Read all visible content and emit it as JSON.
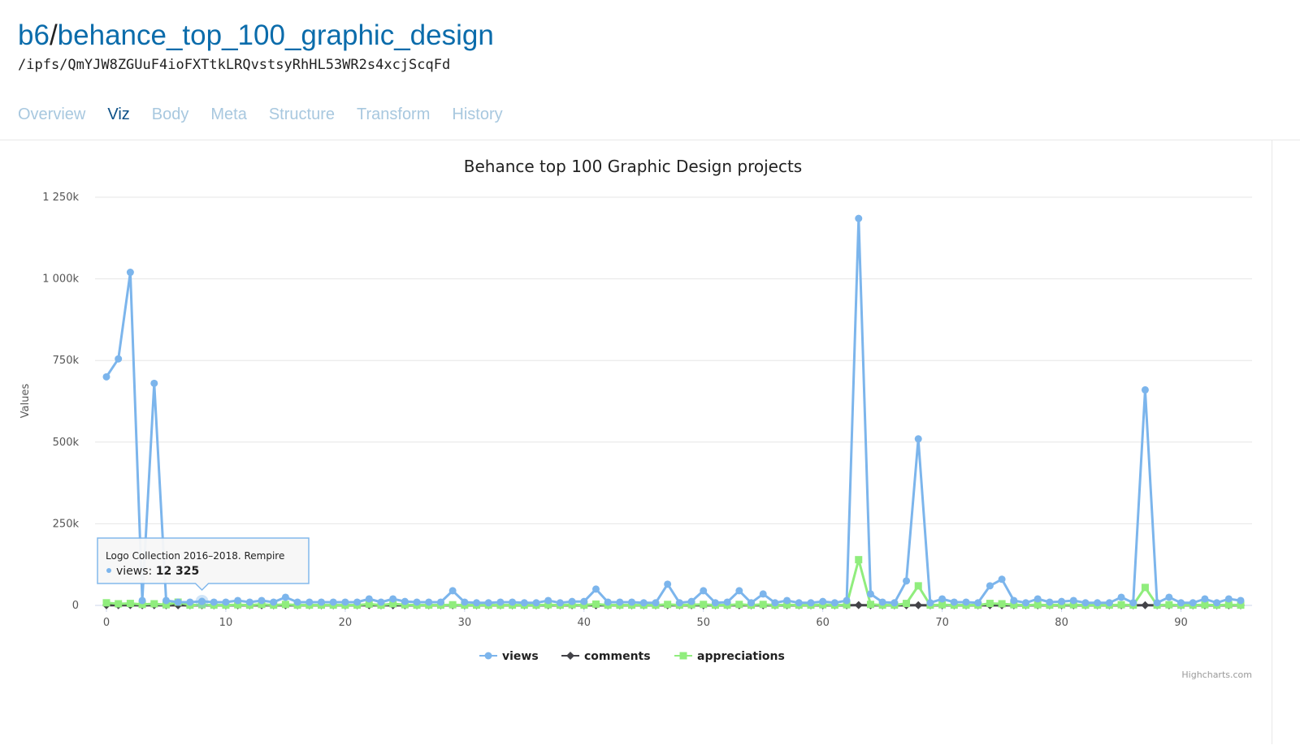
{
  "header": {
    "owner": "b6",
    "separator": "/",
    "dataset": "behance_top_100_graphic_design",
    "path": "/ipfs/QmYJW8ZGUuF4ioFXTtkLRQvstsyRhHL53WR2s4xcjScqFd"
  },
  "tabs": [
    {
      "label": "Overview",
      "active": false
    },
    {
      "label": "Viz",
      "active": true
    },
    {
      "label": "Body",
      "active": false
    },
    {
      "label": "Meta",
      "active": false
    },
    {
      "label": "Structure",
      "active": false
    },
    {
      "label": "Transform",
      "active": false
    },
    {
      "label": "History",
      "active": false
    }
  ],
  "colors": {
    "views": "#7cb5ec",
    "comments": "#434348",
    "appreciations": "#90ed7d",
    "link": "#0b6cab",
    "tab_inactive": "#a8c8df",
    "tab_active": "#0b4f86"
  },
  "chart_data": {
    "type": "line",
    "title": "Behance top 100 Graphic Design projects",
    "xlabel": "",
    "ylabel": "Values",
    "xlim": [
      0,
      95
    ],
    "ylim": [
      0,
      1250000
    ],
    "x_ticks": [
      "0",
      "10",
      "20",
      "30",
      "40",
      "50",
      "60",
      "70",
      "80",
      "90"
    ],
    "y_ticks": [
      "0",
      "250k",
      "500k",
      "750k",
      "1 000k",
      "1 250k"
    ],
    "grid": true,
    "legend": "bottom-center",
    "credit": "Highcharts.com",
    "tooltip": {
      "title": "Logo Collection 2016–2018. Rempire",
      "series": "views",
      "value": "12 325",
      "x": 8
    },
    "series": [
      {
        "name": "views",
        "marker": "circle",
        "values": [
          700000,
          755000,
          1020000,
          15000,
          680000,
          15000,
          10000,
          10000,
          12325,
          10000,
          10000,
          15000,
          10000,
          15000,
          10000,
          25000,
          10000,
          10000,
          10000,
          10000,
          10000,
          10000,
          20000,
          10000,
          20000,
          12000,
          10000,
          10000,
          10000,
          45000,
          10000,
          8000,
          8000,
          10000,
          10000,
          8000,
          8000,
          15000,
          8000,
          12000,
          12000,
          50000,
          10000,
          10000,
          10000,
          8000,
          8000,
          65000,
          8000,
          12000,
          45000,
          8000,
          10000,
          45000,
          8000,
          35000,
          8000,
          15000,
          8000,
          8000,
          12000,
          8000,
          15000,
          1185000,
          35000,
          10000,
          8000,
          75000,
          510000,
          8000,
          20000,
          10000,
          10000,
          8000,
          60000,
          80000,
          15000,
          8000,
          20000,
          10000,
          12000,
          15000,
          8000,
          8000,
          8000,
          25000,
          8000,
          660000,
          8000,
          25000,
          8000,
          8000,
          20000,
          8000,
          20000,
          15000
        ]
      },
      {
        "name": "comments",
        "marker": "diamond",
        "values": [
          500,
          500,
          800,
          200,
          600,
          200,
          200,
          200,
          200,
          200,
          200,
          200,
          200,
          200,
          200,
          300,
          200,
          200,
          200,
          200,
          200,
          200,
          200,
          200,
          200,
          200,
          200,
          200,
          200,
          300,
          200,
          200,
          200,
          200,
          200,
          200,
          200,
          200,
          200,
          200,
          200,
          300,
          200,
          200,
          200,
          200,
          200,
          300,
          200,
          200,
          300,
          200,
          200,
          300,
          200,
          300,
          200,
          200,
          200,
          200,
          200,
          200,
          200,
          900,
          300,
          200,
          200,
          300,
          600,
          200,
          200,
          200,
          200,
          200,
          300,
          300,
          200,
          200,
          200,
          200,
          200,
          200,
          200,
          200,
          200,
          200,
          200,
          500,
          200,
          200,
          200,
          200,
          200,
          200,
          200,
          200
        ]
      },
      {
        "name": "appreciations",
        "marker": "square",
        "values": [
          8000,
          5000,
          6000,
          3000,
          5000,
          2000,
          10000,
          1000,
          2000,
          1000,
          1000,
          2000,
          1000,
          3000,
          1000,
          3000,
          1000,
          1000,
          1000,
          1000,
          1000,
          1000,
          4000,
          1000,
          5000,
          2000,
          1000,
          1000,
          1000,
          2000,
          1000,
          1000,
          1000,
          1000,
          1000,
          1000,
          1000,
          2000,
          1000,
          2000,
          1000,
          4000,
          1000,
          1000,
          1000,
          1000,
          1000,
          3000,
          1000,
          2000,
          3000,
          1000,
          1000,
          3000,
          1000,
          3000,
          1000,
          2000,
          1000,
          1000,
          2000,
          1000,
          2000,
          140000,
          3000,
          1000,
          1000,
          6000,
          60000,
          1000,
          2000,
          1000,
          1000,
          1000,
          6000,
          5000,
          2000,
          1000,
          2000,
          1000,
          2000,
          2000,
          1000,
          1000,
          1000,
          2000,
          1000,
          55000,
          1000,
          2000,
          1000,
          1000,
          2000,
          1000,
          2000,
          1000
        ]
      }
    ]
  }
}
